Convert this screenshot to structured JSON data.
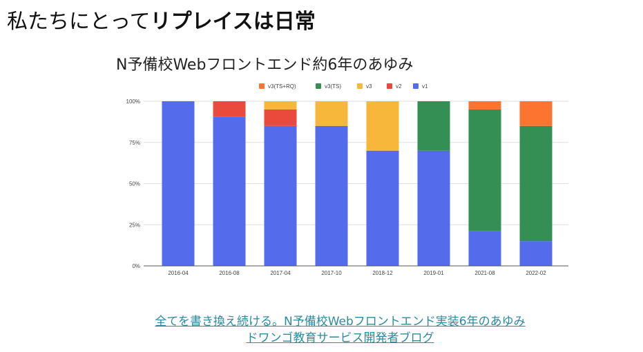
{
  "slide": {
    "heading_normal": "私たちにとって",
    "heading_bold": "リプレイスは日常",
    "link_line1": "全てを書き換え続ける。N予備校Webフロントエンド実装6年のあゆみ",
    "link_line2": "ドワンゴ教育サービス開発者ブログ"
  },
  "chart_data": {
    "type": "bar",
    "stacked": true,
    "title": "N予備校Webフロントエンド約6年のあゆみ",
    "categories": [
      "2016-04",
      "2016-08",
      "2017-04",
      "2017-10",
      "2018-12",
      "2019-01",
      "2021-08",
      "2022-02"
    ],
    "series": [
      {
        "name": "v1",
        "color": "#546bec",
        "values": [
          100,
          90.5,
          85,
          85,
          70,
          70,
          21,
          15
        ]
      },
      {
        "name": "v2",
        "color": "#ea4a3c",
        "values": [
          0,
          9.5,
          10,
          0,
          0,
          0,
          0,
          0
        ]
      },
      {
        "name": "v3",
        "color": "#f7b73b",
        "values": [
          0,
          0,
          5,
          15,
          30,
          0,
          0,
          0
        ]
      },
      {
        "name": "v3(TS)",
        "color": "#338f54",
        "values": [
          0,
          0,
          0,
          0,
          0,
          30,
          74,
          70
        ]
      },
      {
        "name": "v3(TS+RQ)",
        "color": "#fb7430",
        "values": [
          0,
          0,
          0,
          0,
          0,
          0,
          5,
          15
        ]
      }
    ],
    "legend_order": [
      "v3(TS+RQ)",
      "v3(TS)",
      "v3",
      "v2",
      "v1"
    ],
    "legend_position": "top",
    "yticks": [
      "0%",
      "25%",
      "50%",
      "75%",
      "100%"
    ],
    "ylim": [
      0,
      100
    ],
    "grid": true
  }
}
